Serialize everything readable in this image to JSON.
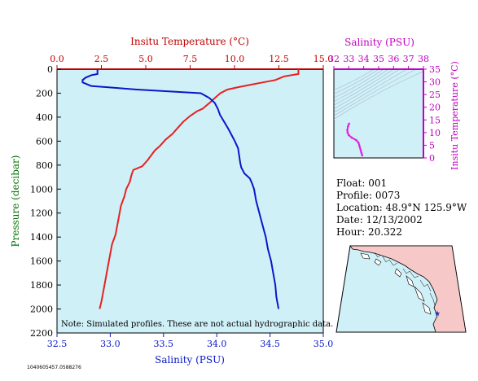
{
  "chart_data": [
    {
      "type": "line",
      "title": "",
      "top_axis_label": "Insitu Temperature (°C)",
      "top_axis_ticks": [
        "0.0",
        "2.5",
        "5.0",
        "7.5",
        "10.0",
        "12.5",
        "15.0"
      ],
      "top_axis_range": [
        0,
        15
      ],
      "bottom_axis_label": "Salinity (PSU)",
      "bottom_axis_ticks": [
        "32.5",
        "33.0",
        "33.5",
        "34.0",
        "34.5",
        "35.0"
      ],
      "bottom_axis_range": [
        32.5,
        35.0
      ],
      "ylabel": "Pressure (decibar)",
      "y_ticks": [
        "0",
        "200",
        "400",
        "600",
        "800",
        "1000",
        "1200",
        "1400",
        "1600",
        "1800",
        "2000",
        "2200"
      ],
      "ylim": [
        0,
        2200
      ],
      "y_inverted": true,
      "note": "Note: Simulated profiles.  These are not actual hydrographic data.",
      "series": [
        {
          "color": "#e82020",
          "axis": "temperature",
          "points": [
            [
              13.6,
              0
            ],
            [
              13.6,
              40
            ],
            [
              12.8,
              60
            ],
            [
              12.3,
              90
            ],
            [
              11.6,
              110
            ],
            [
              10.9,
              130
            ],
            [
              10.2,
              150
            ],
            [
              9.6,
              170
            ],
            [
              9.2,
              200
            ],
            [
              8.9,
              240
            ],
            [
              8.6,
              280
            ],
            [
              8.2,
              330
            ],
            [
              7.9,
              350
            ],
            [
              7.5,
              390
            ],
            [
              7.1,
              440
            ],
            [
              6.8,
              490
            ],
            [
              6.5,
              540
            ],
            [
              6.1,
              590
            ],
            [
              5.8,
              640
            ],
            [
              5.5,
              680
            ],
            [
              5.3,
              720
            ],
            [
              5.1,
              760
            ],
            [
              4.8,
              810
            ],
            [
              4.3,
              840
            ],
            [
              4.2,
              880
            ],
            [
              4.1,
              940
            ],
            [
              3.9,
              1000
            ],
            [
              3.8,
              1060
            ],
            [
              3.6,
              1140
            ],
            [
              3.5,
              1220
            ],
            [
              3.4,
              1300
            ],
            [
              3.3,
              1380
            ],
            [
              3.1,
              1460
            ],
            [
              3.0,
              1540
            ],
            [
              2.9,
              1620
            ],
            [
              2.8,
              1700
            ],
            [
              2.7,
              1780
            ],
            [
              2.6,
              1860
            ],
            [
              2.5,
              1940
            ],
            [
              2.4,
              2000
            ]
          ]
        },
        {
          "color": "#0818c8",
          "axis": "salinity",
          "points": [
            [
              32.88,
              0
            ],
            [
              32.88,
              40
            ],
            [
              32.82,
              50
            ],
            [
              32.77,
              70
            ],
            [
              32.74,
              90
            ],
            [
              32.74,
              110
            ],
            [
              32.82,
              140
            ],
            [
              33.25,
              170
            ],
            [
              33.85,
              200
            ],
            [
              33.93,
              240
            ],
            [
              33.98,
              280
            ],
            [
              34.01,
              330
            ],
            [
              34.03,
              380
            ],
            [
              34.07,
              440
            ],
            [
              34.11,
              500
            ],
            [
              34.14,
              550
            ],
            [
              34.17,
              600
            ],
            [
              34.2,
              660
            ],
            [
              34.21,
              720
            ],
            [
              34.22,
              780
            ],
            [
              34.23,
              820
            ],
            [
              34.26,
              870
            ],
            [
              34.31,
              910
            ],
            [
              34.33,
              950
            ],
            [
              34.35,
              1000
            ],
            [
              34.37,
              1100
            ],
            [
              34.4,
              1200
            ],
            [
              34.43,
              1300
            ],
            [
              34.46,
              1400
            ],
            [
              34.48,
              1500
            ],
            [
              34.51,
              1600
            ],
            [
              34.53,
              1700
            ],
            [
              34.55,
              1800
            ],
            [
              34.56,
              1900
            ],
            [
              34.58,
              2000
            ]
          ]
        }
      ]
    },
    {
      "type": "scatter",
      "title": "",
      "top_axis_label": "Salinity (PSU)",
      "x_ticks": [
        "32",
        "33",
        "34",
        "35",
        "36",
        "37",
        "38"
      ],
      "xlim": [
        32,
        38
      ],
      "right_axis_label": "Insitu Temperature (°C)",
      "y_ticks": [
        "0",
        "5",
        "10",
        "15",
        "20",
        "25",
        "30",
        "35"
      ],
      "ylim": [
        0,
        35
      ],
      "grid": "density isopycnal arcs",
      "series": [
        {
          "color": "#e020e0",
          "points": [
            [
              33.9,
              1.0
            ],
            [
              33.85,
              2.0
            ],
            [
              33.8,
              3.0
            ],
            [
              33.75,
              4.0
            ],
            [
              33.7,
              5.0
            ],
            [
              33.65,
              6.0
            ],
            [
              33.5,
              7.0
            ],
            [
              33.2,
              8.0
            ],
            [
              33.0,
              9.0
            ],
            [
              32.92,
              10.0
            ],
            [
              32.9,
              11.0
            ],
            [
              32.95,
              12.5
            ],
            [
              33.02,
              13.5
            ]
          ]
        }
      ]
    }
  ],
  "info": {
    "float": "Float:  001",
    "profile": "Profile:  0073",
    "location": "Location:  48.9°N  125.9°W",
    "date": "Date:  12/13/2002",
    "hour": "Hour:  20.322"
  },
  "map": {
    "marker": "★"
  },
  "footer": "1040605457.0588276",
  "colors": {
    "plot_bg": "#d0f0f8",
    "temperature_axis": "#c00000",
    "salinity_axis": "#0818c8",
    "ts_axis": "#c000c0",
    "land": "#f6c8c8",
    "water": "#d0f0f8"
  }
}
